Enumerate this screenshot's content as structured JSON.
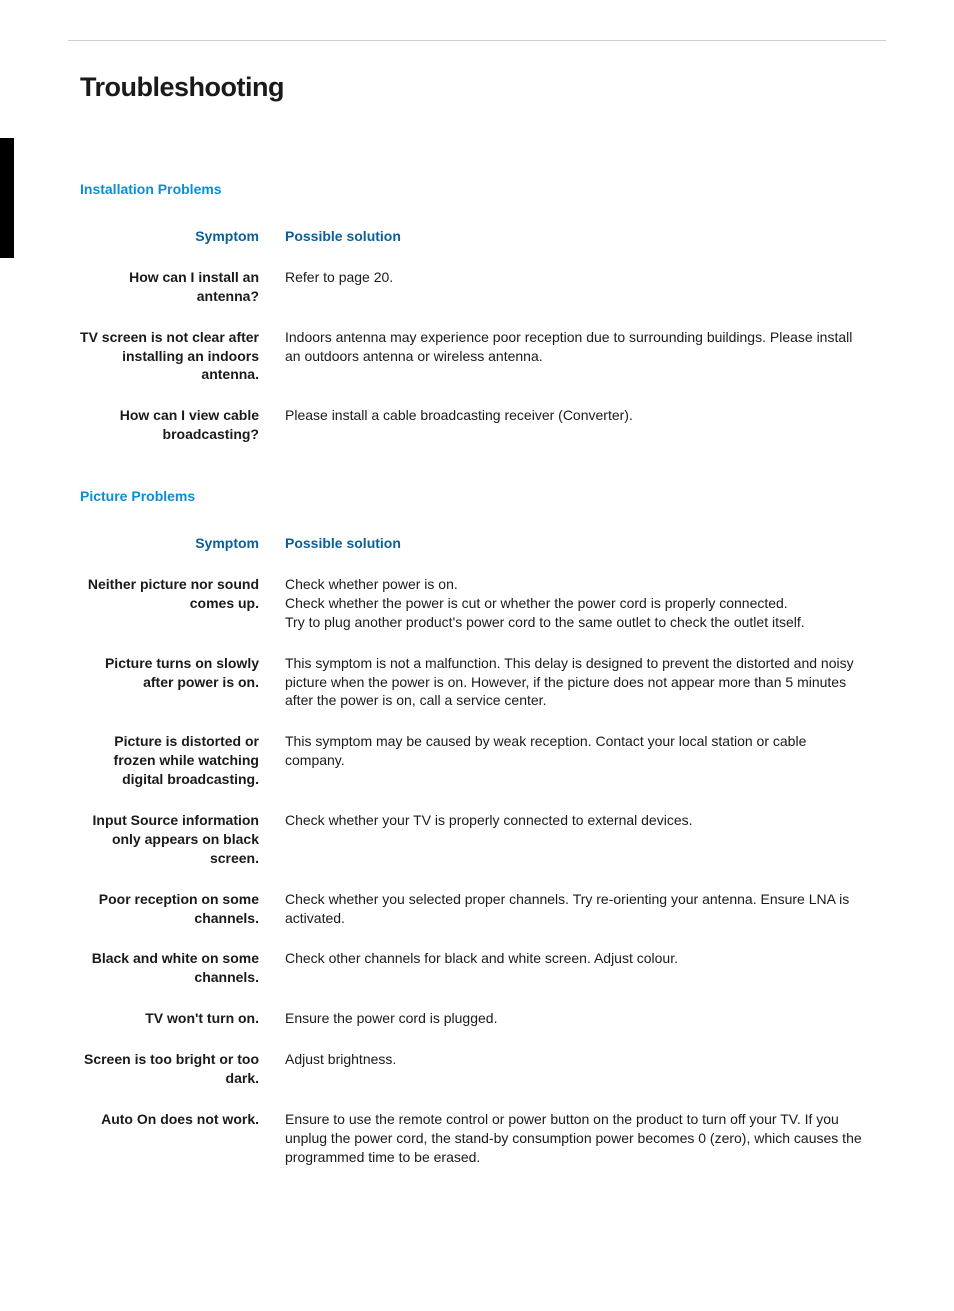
{
  "page": {
    "title": "Troubleshooting",
    "colors": {
      "section_title": "#0a8fd4",
      "header_text": "#0b5f99",
      "body_text": "#1a1a1a",
      "rule": "#cfcfcf",
      "background": "#ffffff",
      "side_tab": "#000000"
    },
    "fonts": {
      "title_size_pt": 27,
      "section_title_size_pt": 14,
      "body_size_pt": 14
    }
  },
  "sections": [
    {
      "title": "Installation Problems",
      "columns": {
        "symptom": "Symptom",
        "solution": "Possible solution"
      },
      "rows": [
        {
          "symptom": "How can I install an antenna?",
          "solution": "Refer to page 20."
        },
        {
          "symptom": "TV screen is not clear after installing an indoors antenna.",
          "solution": "Indoors antenna may experience poor reception due to surrounding buildings. Please install an outdoors antenna or wireless antenna."
        },
        {
          "symptom": "How can I view cable broadcasting?",
          "solution": "Please install a cable broadcasting receiver (Converter)."
        }
      ]
    },
    {
      "title": "Picture Problems",
      "columns": {
        "symptom": "Symptom",
        "solution": "Possible solution"
      },
      "rows": [
        {
          "symptom": "Neither picture nor sound comes up.",
          "solution": "Check whether power is on.\nCheck whether the power is cut or whether the power cord is properly connected.\nTry to plug another product's power cord to the same outlet to check the outlet itself."
        },
        {
          "symptom": "Picture turns on slowly after power is on.",
          "solution": "This symptom is not a malfunction. This delay is designed to prevent the distorted and noisy picture when the power is on. However, if the picture does not appear more than 5 minutes after the power is on, call a service center."
        },
        {
          "symptom": "Picture is distorted or frozen while watching digital broadcasting.",
          "solution": "This symptom may be caused by weak reception. Contact your local station or cable company."
        },
        {
          "symptom": "Input Source information only appears on black screen.",
          "solution": "Check whether your TV is properly connected to external devices."
        },
        {
          "symptom": "Poor reception on some channels.",
          "solution": "Check whether you selected proper channels. Try re-orienting your antenna. Ensure LNA is activated."
        },
        {
          "symptom": "Black and white on some channels.",
          "solution": "Check other channels for black and white screen. Adjust colour."
        },
        {
          "symptom": "TV won't turn on.",
          "solution": "Ensure the power cord is plugged."
        },
        {
          "symptom": "Screen is too bright or too dark.",
          "solution": "Adjust brightness."
        },
        {
          "symptom": "Auto On does not work.",
          "solution": "Ensure to use the remote control or power button on the product to turn off your TV. If you unplug the power cord, the stand-by consumption power becomes 0 (zero), which causes the programmed time to be erased."
        }
      ]
    }
  ]
}
